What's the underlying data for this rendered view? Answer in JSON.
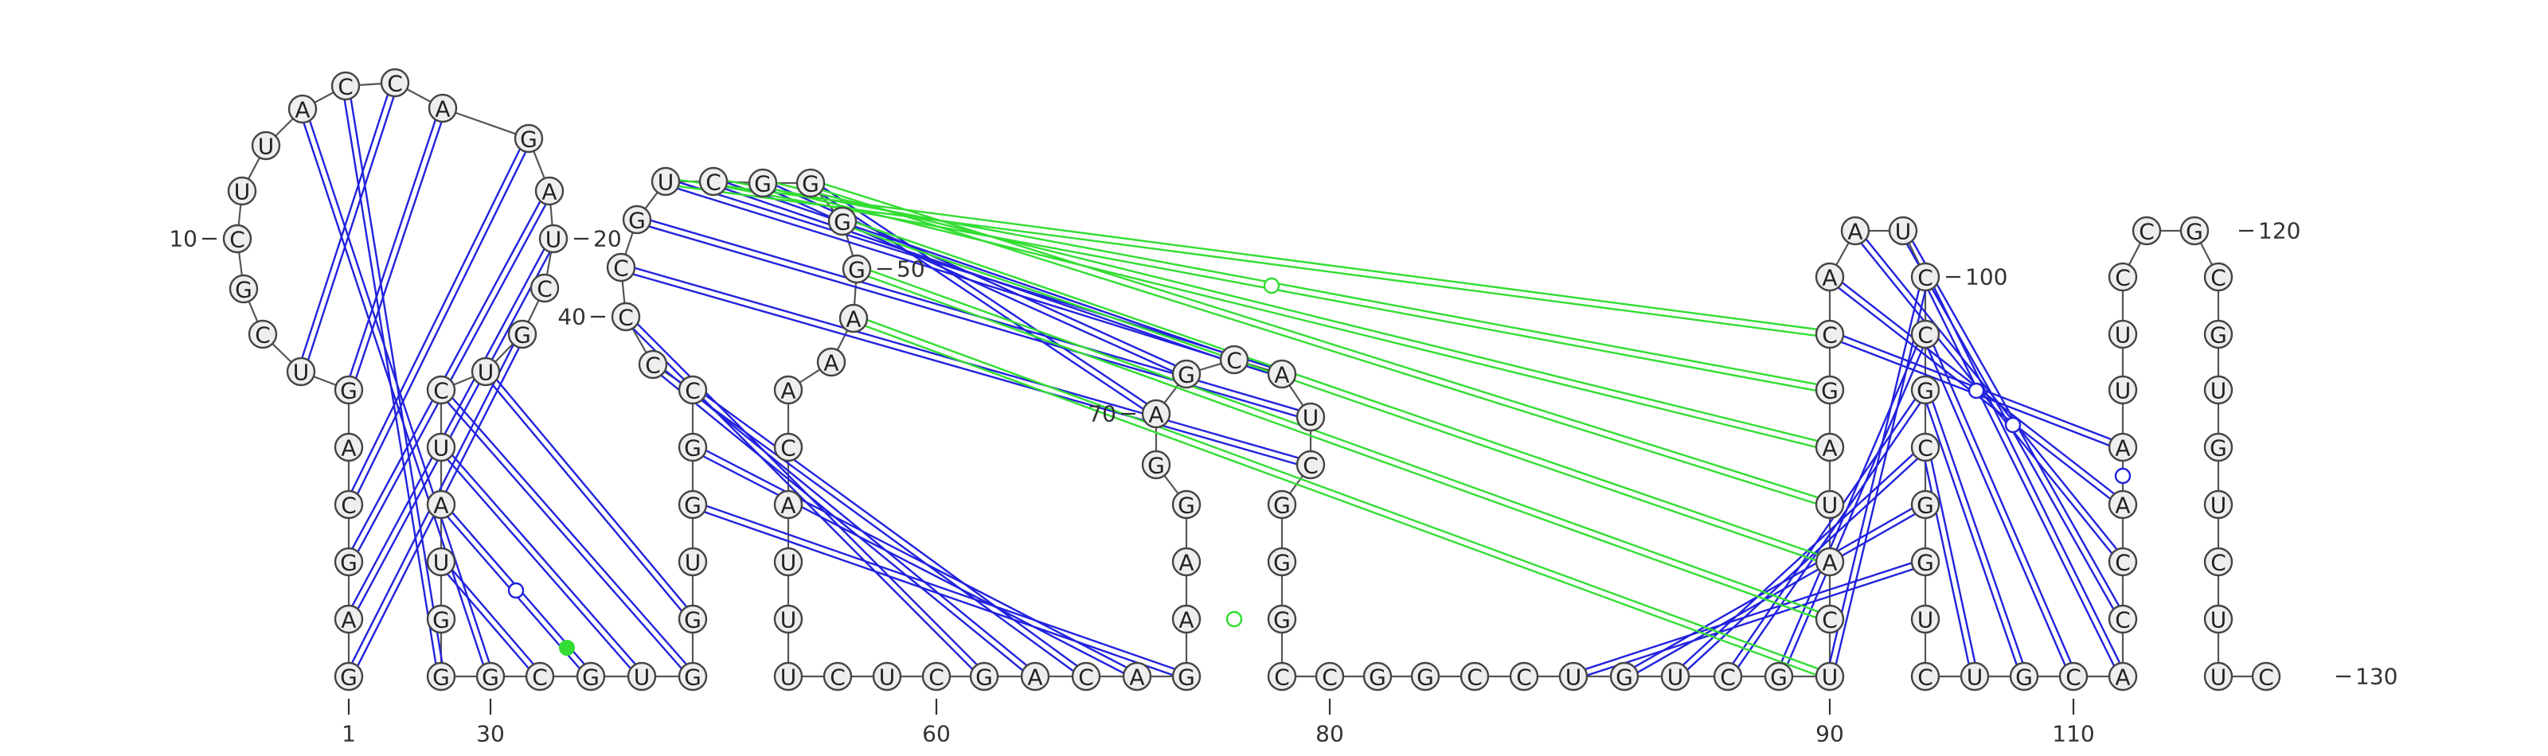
{
  "sequence": "GAGCAGUCGCUUACCAGAUCGUCUAUGGGCGUGGUGGCCCCGUCGGGGAAACAUUUCUCGACAGAAGGAGCAUCGGGCCGGCCUGUCGUCAUAGCAAUCCGCGGUCUGCACCAAUUCCGCGUGUCUUC",
  "position_labels": {
    "below": [
      "1",
      "30",
      "60",
      "80",
      "90",
      "110"
    ],
    "left": [
      "10",
      "40",
      "70"
    ],
    "right": [
      "20",
      "50",
      "100",
      "120",
      "130"
    ]
  },
  "structure": {
    "canonical_pairs": [
      [
        1,
        21
      ],
      [
        2,
        19
      ],
      [
        3,
        18
      ],
      [
        4,
        17
      ],
      [
        6,
        16
      ],
      [
        7,
        15
      ],
      [
        13,
        29
      ],
      [
        14,
        28
      ],
      [
        22,
        34
      ],
      [
        23,
        33
      ],
      [
        24,
        32
      ],
      [
        25,
        31
      ],
      [
        26,
        30
      ],
      [
        36,
        64
      ],
      [
        37,
        63
      ],
      [
        38,
        62
      ],
      [
        39,
        61
      ],
      [
        40,
        60
      ],
      [
        41,
        74
      ],
      [
        42,
        73
      ],
      [
        43,
        72
      ],
      [
        44,
        71
      ],
      [
        45,
        70
      ],
      [
        46,
        69
      ],
      [
        84,
        104
      ],
      [
        85,
        103
      ],
      [
        86,
        102
      ],
      [
        87,
        101
      ],
      [
        88,
        100
      ],
      [
        89,
        99
      ],
      [
        95,
        114
      ],
      [
        96,
        113
      ],
      [
        97,
        112
      ],
      [
        98,
        111
      ],
      [
        99,
        110
      ],
      [
        100,
        109
      ],
      [
        101,
        108
      ],
      [
        102,
        107
      ]
    ],
    "noncanonical_pairs": [
      [
        49,
        89
      ],
      [
        48,
        90
      ],
      [
        47,
        91
      ],
      [
        46,
        92
      ],
      [
        45,
        93
      ],
      [
        44,
        94
      ],
      [
        43,
        95
      ]
    ],
    "markers": [
      {
        "type": "wobble-open",
        "color": "#2222dd"
      },
      {
        "type": "wobble-open",
        "color": "#33dd33"
      },
      {
        "type": "filled",
        "color": "#33dd33"
      }
    ]
  },
  "colors": {
    "canonical": "#2222dd",
    "noncanonical": "#33dd33",
    "backbone": "#555555",
    "nucleotide_fill": "#eeeeee"
  }
}
